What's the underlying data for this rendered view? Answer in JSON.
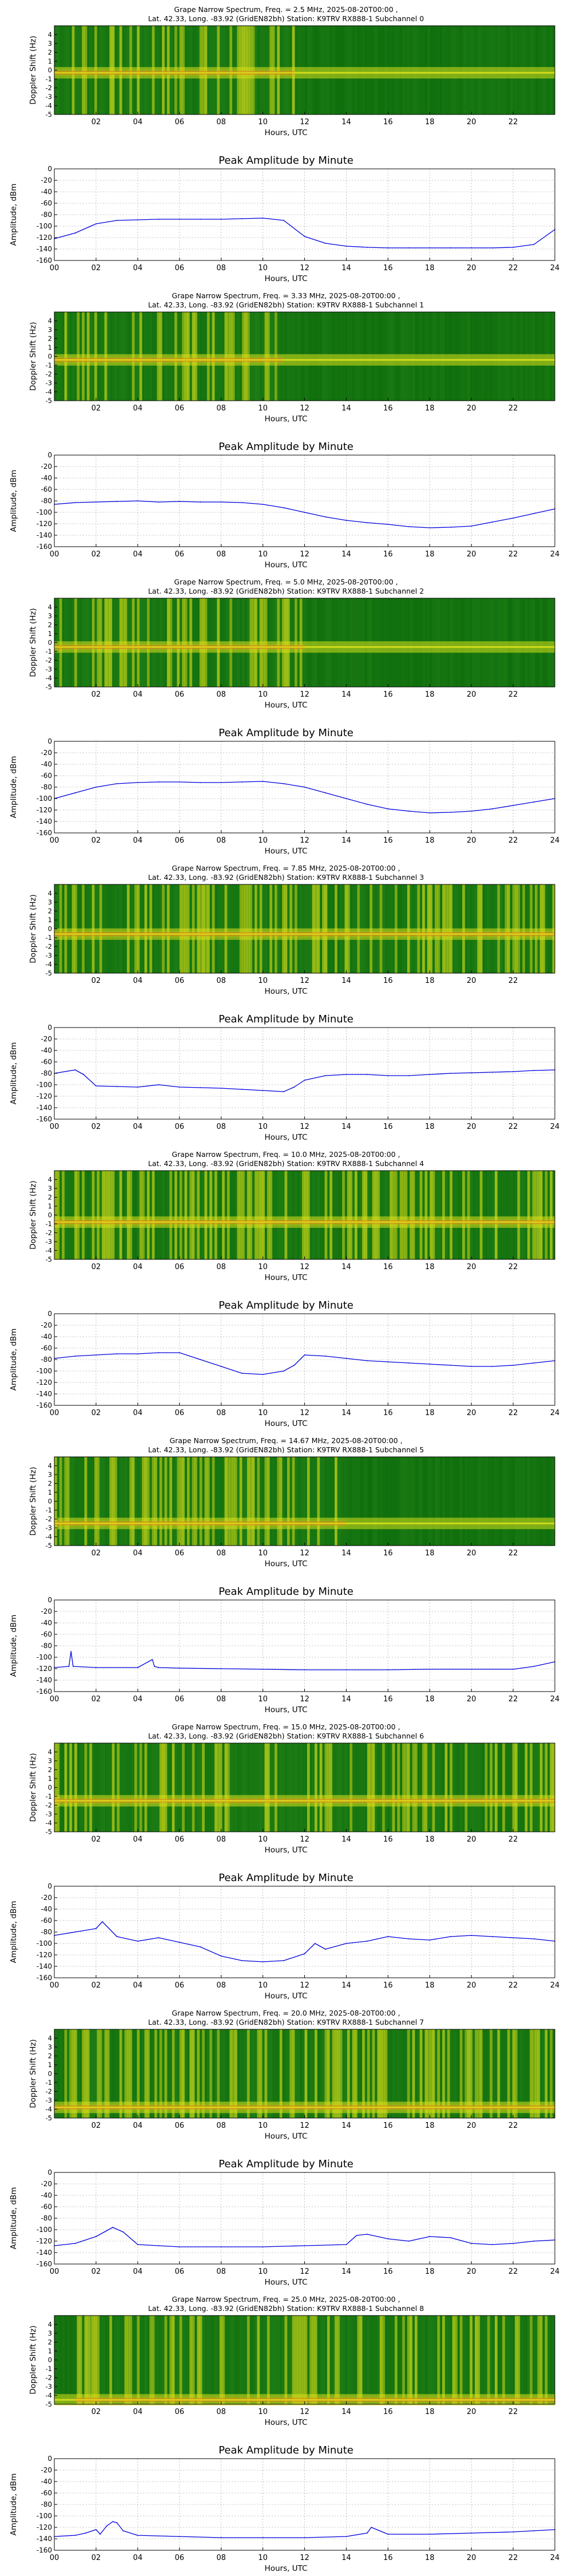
{
  "figure": {
    "spectrum_title_prefix": "Grape Narrow Spectrum, Freq. = ",
    "spectrum_title_suffix": " MHz, 2025-08-20T00:00 ,",
    "location_prefix": "Lat.  42.33, Long. -83.92 (GridEN82bh) Station: K9TRV RX888-1 Subchannel ",
    "spectrum_ylabel": "Doppler Shift (Hz)",
    "amplitude_title": "Peak Amplitude by Minute",
    "amplitude_ylabel": "Amplitude, dBm",
    "xlabel": "Hours, UTC",
    "spectrum_xticks": [
      "02",
      "04",
      "06",
      "08",
      "10",
      "12",
      "14",
      "16",
      "18",
      "20",
      "22"
    ],
    "amplitude_xticks": [
      "00",
      "02",
      "04",
      "06",
      "08",
      "10",
      "12",
      "14",
      "16",
      "18",
      "20",
      "22",
      "24"
    ],
    "spectrum_yticks": [
      "4",
      "3",
      "2",
      "1",
      "0",
      "-1",
      "-2",
      "-3",
      "-4",
      "-5"
    ],
    "amplitude_yticks": [
      "0",
      "-20",
      "-40",
      "-60",
      "-80",
      "-100",
      "-120",
      "-140",
      "-160"
    ],
    "colors": {
      "line": "#0000dd",
      "grid": "#b0b0b0",
      "spec_bg": "#0a6a0a",
      "spec_low": "#2e8b1e",
      "spec_mid": "#d8e01c",
      "spec_high": "#e53010"
    }
  },
  "chart_data": [
    {
      "type": "heatmap",
      "subchannel": "0",
      "freq_mhz": "2.5",
      "active_hours": [
        0,
        11.5
      ],
      "carrier_doppler_hz": -0.3,
      "xlim": [
        0,
        24
      ],
      "ylim": [
        -5,
        5
      ]
    },
    {
      "type": "line",
      "title": "Peak Amplitude by Minute",
      "xlabel": "Hours, UTC",
      "ylabel": "Amplitude, dBm",
      "xlim": [
        0,
        24
      ],
      "ylim": [
        -160,
        0
      ],
      "grid": true,
      "x": [
        0,
        1,
        2,
        3,
        4,
        5,
        6,
        7,
        8,
        9,
        10,
        11,
        12,
        13,
        14,
        15,
        16,
        17,
        18,
        19,
        20,
        21,
        22,
        23,
        24
      ],
      "y": [
        -122,
        -112,
        -96,
        -90,
        -89,
        -88,
        -88,
        -88,
        -88,
        -87,
        -86,
        -90,
        -118,
        -130,
        -135,
        -137,
        -138,
        -138,
        -138,
        -138,
        -138,
        -138,
        -137,
        -132,
        -106
      ]
    },
    {
      "type": "heatmap",
      "subchannel": "1",
      "freq_mhz": "3.33",
      "active_hours": [
        0,
        11
      ],
      "carrier_doppler_hz": -0.4,
      "xlim": [
        0,
        24
      ],
      "ylim": [
        -5,
        5
      ]
    },
    {
      "type": "line",
      "title": "Peak Amplitude by Minute",
      "xlabel": "Hours, UTC",
      "ylabel": "Amplitude, dBm",
      "xlim": [
        0,
        24
      ],
      "ylim": [
        -160,
        0
      ],
      "grid": true,
      "x": [
        0,
        1,
        2,
        3,
        4,
        5,
        6,
        7,
        8,
        9,
        10,
        11,
        12,
        13,
        14,
        15,
        16,
        17,
        18,
        19,
        20,
        21,
        22,
        23,
        24
      ],
      "y": [
        -86,
        -83,
        -82,
        -81,
        -80,
        -82,
        -81,
        -82,
        -82,
        -83,
        -86,
        -92,
        -100,
        -108,
        -114,
        -118,
        -121,
        -125,
        -127,
        -126,
        -124,
        -117,
        -110,
        -102,
        -94
      ]
    },
    {
      "type": "heatmap",
      "subchannel": "2",
      "freq_mhz": "5.0",
      "active_hours": [
        0,
        12
      ],
      "carrier_doppler_hz": -0.5,
      "xlim": [
        0,
        24
      ],
      "ylim": [
        -5,
        5
      ]
    },
    {
      "type": "line",
      "title": "Peak Amplitude by Minute",
      "xlabel": "Hours, UTC",
      "ylabel": "Amplitude, dBm",
      "xlim": [
        0,
        24
      ],
      "ylim": [
        -160,
        0
      ],
      "grid": true,
      "x": [
        0,
        1,
        2,
        3,
        4,
        5,
        6,
        7,
        8,
        9,
        10,
        11,
        12,
        13,
        14,
        15,
        16,
        17,
        18,
        19,
        20,
        21,
        22,
        23,
        24
      ],
      "y": [
        -100,
        -90,
        -80,
        -74,
        -72,
        -71,
        -71,
        -72,
        -72,
        -71,
        -70,
        -74,
        -80,
        -90,
        -100,
        -110,
        -118,
        -122,
        -125,
        -124,
        -122,
        -118,
        -112,
        -106,
        -100
      ]
    },
    {
      "type": "heatmap",
      "subchannel": "3",
      "freq_mhz": "7.85",
      "active_hours": [
        0,
        24
      ],
      "carrier_doppler_hz": -0.6,
      "xlim": [
        0,
        24
      ],
      "ylim": [
        -5,
        5
      ]
    },
    {
      "type": "line",
      "title": "Peak Amplitude by Minute",
      "xlabel": "Hours, UTC",
      "ylabel": "Amplitude, dBm",
      "xlim": [
        0,
        24
      ],
      "ylim": [
        -160,
        0
      ],
      "grid": true,
      "x": [
        0,
        1,
        1.4,
        2,
        3,
        4,
        5,
        6,
        7,
        8,
        9,
        10,
        11,
        11.5,
        12,
        13,
        14,
        15,
        16,
        17,
        18,
        19,
        20,
        21,
        22,
        23,
        24
      ],
      "y": [
        -80,
        -74,
        -82,
        -102,
        -103,
        -104,
        -100,
        -104,
        -105,
        -106,
        -108,
        -110,
        -112,
        -104,
        -92,
        -84,
        -82,
        -82,
        -84,
        -84,
        -82,
        -80,
        -79,
        -78,
        -77,
        -75,
        -74
      ]
    },
    {
      "type": "heatmap",
      "subchannel": "4",
      "freq_mhz": "10.0",
      "active_hours": [
        0,
        24
      ],
      "carrier_doppler_hz": -0.8,
      "xlim": [
        0,
        24
      ],
      "ylim": [
        -5,
        5
      ]
    },
    {
      "type": "line",
      "title": "Peak Amplitude by Minute",
      "xlabel": "Hours, UTC",
      "ylabel": "Amplitude, dBm",
      "xlim": [
        0,
        24
      ],
      "ylim": [
        -160,
        0
      ],
      "grid": true,
      "x": [
        0,
        1,
        2,
        3,
        4,
        5,
        6,
        7,
        8,
        9,
        10,
        11,
        11.5,
        12,
        13,
        14,
        15,
        16,
        17,
        18,
        19,
        20,
        21,
        22,
        23,
        24
      ],
      "y": [
        -78,
        -74,
        -72,
        -70,
        -70,
        -68,
        -68,
        -80,
        -92,
        -104,
        -106,
        -100,
        -90,
        -72,
        -74,
        -78,
        -82,
        -84,
        -86,
        -88,
        -90,
        -92,
        -92,
        -90,
        -86,
        -82
      ]
    },
    {
      "type": "heatmap",
      "subchannel": "5",
      "freq_mhz": "14.67",
      "active_hours": [
        0,
        14
      ],
      "carrier_doppler_hz": -2.5,
      "xlim": [
        0,
        24
      ],
      "ylim": [
        -5,
        5
      ]
    },
    {
      "type": "line",
      "title": "Peak Amplitude by Minute",
      "xlabel": "Hours, UTC",
      "ylabel": "Amplitude, dBm",
      "xlim": [
        0,
        24
      ],
      "ylim": [
        -160,
        0
      ],
      "grid": true,
      "x": [
        0,
        0.7,
        0.8,
        0.9,
        2,
        4,
        4.7,
        4.8,
        5,
        6,
        8,
        10,
        12,
        14,
        16,
        18,
        20,
        22,
        23,
        24
      ],
      "y": [
        -118,
        -116,
        -90,
        -116,
        -118,
        -118,
        -104,
        -116,
        -118,
        -119,
        -120,
        -121,
        -122,
        -122,
        -122,
        -121,
        -121,
        -121,
        -116,
        -108
      ]
    },
    {
      "type": "heatmap",
      "subchannel": "6",
      "freq_mhz": "15.0",
      "active_hours": [
        0,
        24
      ],
      "carrier_doppler_hz": -1.5,
      "xlim": [
        0,
        24
      ],
      "ylim": [
        -5,
        5
      ]
    },
    {
      "type": "line",
      "title": "Peak Amplitude by Minute",
      "xlabel": "Hours, UTC",
      "ylabel": "Amplitude, dBm",
      "xlim": [
        0,
        24
      ],
      "ylim": [
        -160,
        0
      ],
      "grid": true,
      "x": [
        0,
        1,
        2,
        2.3,
        3,
        4,
        5,
        6,
        7,
        8,
        9,
        10,
        11,
        12,
        12.5,
        13,
        14,
        15,
        16,
        17,
        18,
        19,
        20,
        21,
        22,
        23,
        24
      ],
      "y": [
        -86,
        -80,
        -74,
        -62,
        -88,
        -96,
        -90,
        -98,
        -106,
        -122,
        -130,
        -132,
        -130,
        -118,
        -100,
        -110,
        -100,
        -96,
        -88,
        -92,
        -94,
        -88,
        -86,
        -88,
        -90,
        -92,
        -96
      ]
    },
    {
      "type": "heatmap",
      "subchannel": "7",
      "freq_mhz": "20.0",
      "active_hours": [
        0,
        24
      ],
      "carrier_doppler_hz": -3.8,
      "xlim": [
        0,
        24
      ],
      "ylim": [
        -5,
        5
      ]
    },
    {
      "type": "line",
      "title": "Peak Amplitude by Minute",
      "xlabel": "Hours, UTC",
      "ylabel": "Amplitude, dBm",
      "xlim": [
        0,
        24
      ],
      "ylim": [
        -160,
        0
      ],
      "grid": true,
      "x": [
        0,
        1,
        2,
        2.8,
        3.3,
        4,
        5,
        6,
        8,
        10,
        12,
        14,
        14.5,
        15,
        16,
        17,
        18,
        19,
        20,
        21,
        22,
        23,
        24
      ],
      "y": [
        -128,
        -124,
        -112,
        -96,
        -104,
        -126,
        -128,
        -130,
        -130,
        -130,
        -128,
        -126,
        -110,
        -108,
        -116,
        -120,
        -112,
        -114,
        -124,
        -126,
        -124,
        -120,
        -118
      ]
    },
    {
      "type": "heatmap",
      "subchannel": "8",
      "freq_mhz": "25.0",
      "active_hours": [
        1,
        24
      ],
      "carrier_doppler_hz": -4.5,
      "xlim": [
        0,
        24
      ],
      "ylim": [
        -5,
        5
      ]
    },
    {
      "type": "line",
      "title": "Peak Amplitude by Minute",
      "xlabel": "Hours, UTC",
      "ylabel": "Amplitude, dBm",
      "xlim": [
        0,
        24
      ],
      "ylim": [
        -160,
        0
      ],
      "grid": true,
      "x": [
        0,
        1,
        1.5,
        2,
        2.2,
        2.5,
        2.8,
        3,
        3.3,
        4,
        6,
        8,
        10,
        12,
        14,
        15,
        15.2,
        16,
        18,
        20,
        22,
        23,
        24
      ],
      "y": [
        -136,
        -134,
        -130,
        -124,
        -132,
        -118,
        -110,
        -112,
        -126,
        -134,
        -136,
        -138,
        -138,
        -138,
        -136,
        -130,
        -120,
        -132,
        -132,
        -130,
        -128,
        -126,
        -124
      ]
    }
  ]
}
